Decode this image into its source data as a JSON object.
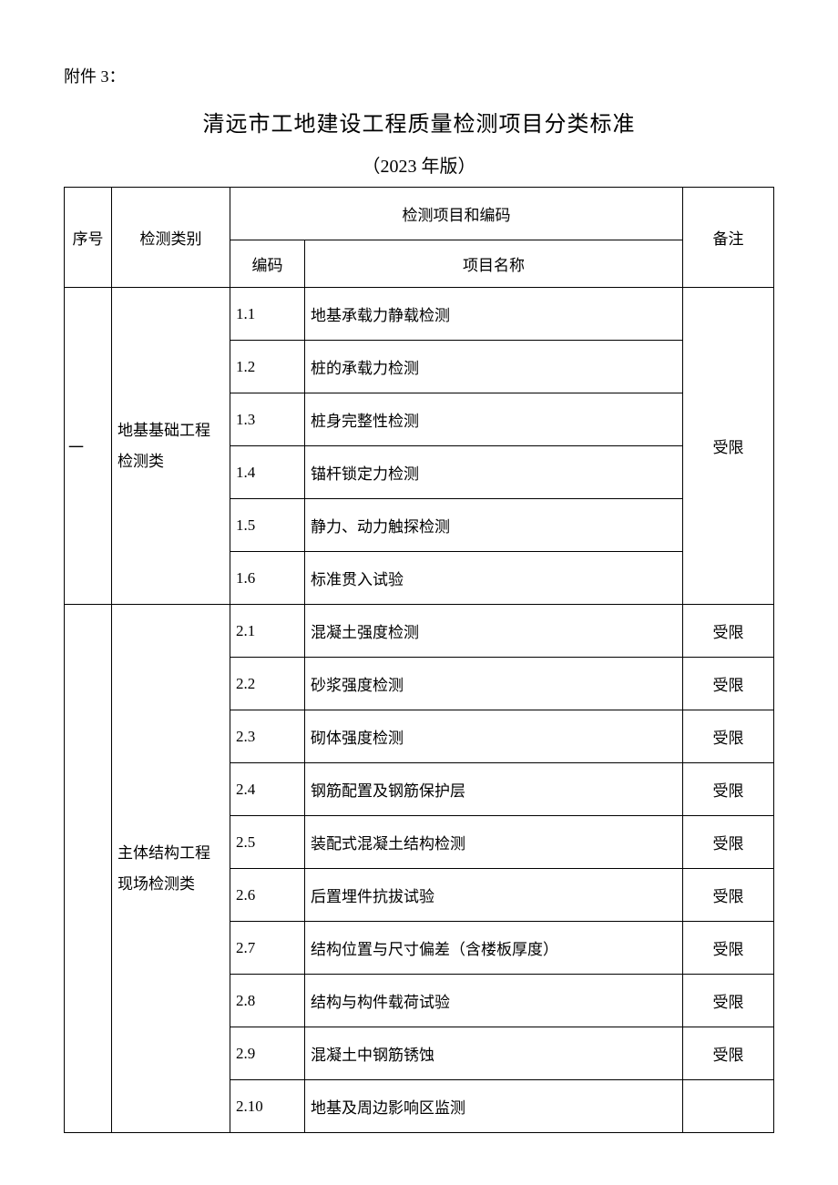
{
  "attachment_label": "附件 3：",
  "title": "清远市工地建设工程质量检测项目分类标准",
  "version": "（2023 年版）",
  "headers": {
    "seq": "序号",
    "category": "检测类别",
    "item_group": "检测项目和编码",
    "code": "编码",
    "name": "项目名称",
    "note": "备注"
  },
  "sections": [
    {
      "seq": "一",
      "category": "地基基础工程检测类",
      "note": "受限",
      "note_span": 6,
      "items": [
        {
          "code": "1.1",
          "name": "地基承载力静载检测"
        },
        {
          "code": "1.2",
          "name": "桩的承载力检测"
        },
        {
          "code": "1.3",
          "name": "桩身完整性检测"
        },
        {
          "code": "1.4",
          "name": "锚杆锁定力检测"
        },
        {
          "code": "1.5",
          "name": "静力、动力触探检测"
        },
        {
          "code": "1.6",
          "name": "标准贯入试验"
        }
      ]
    },
    {
      "seq": "",
      "category": "主体结构工程现场检测类",
      "items": [
        {
          "code": "2.1",
          "name": "混凝土强度检测",
          "note": "受限"
        },
        {
          "code": "2.2",
          "name": "砂浆强度检测",
          "note": "受限"
        },
        {
          "code": "2.3",
          "name": "砌体强度检测",
          "note": "受限"
        },
        {
          "code": "2.4",
          "name": "钢筋配置及钢筋保护层",
          "note": "受限"
        },
        {
          "code": "2.5",
          "name": "装配式混凝土结构检测",
          "note": "受限"
        },
        {
          "code": "2.6",
          "name": "后置埋件抗拔试验",
          "note": "受限"
        },
        {
          "code": "2.7",
          "name": "结构位置与尺寸偏差（含楼板厚度）",
          "note": "受限"
        },
        {
          "code": "2.8",
          "name": "结构与构件载荷试验",
          "note": "受限"
        },
        {
          "code": "2.9",
          "name": "混凝土中钢筋锈蚀",
          "note": "受限"
        },
        {
          "code": "2.10",
          "name": "地基及周边影响区监测",
          "note": ""
        }
      ]
    }
  ]
}
